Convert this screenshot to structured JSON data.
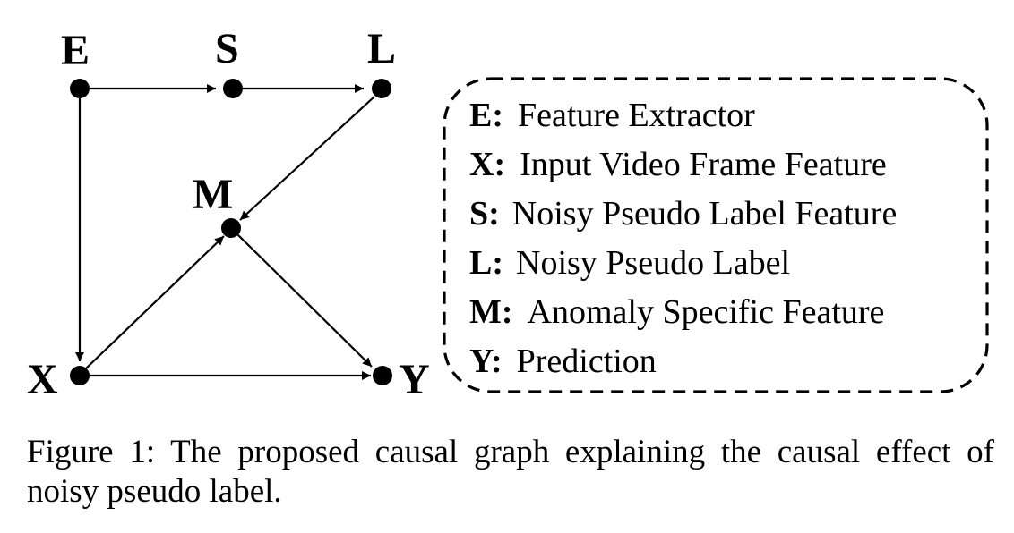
{
  "diagram": {
    "nodes": [
      {
        "id": "E",
        "label": "E"
      },
      {
        "id": "S",
        "label": "S"
      },
      {
        "id": "L",
        "label": "L"
      },
      {
        "id": "M",
        "label": "M"
      },
      {
        "id": "X",
        "label": "X"
      },
      {
        "id": "Y",
        "label": "Y"
      }
    ],
    "edges": [
      {
        "from": "E",
        "to": "S"
      },
      {
        "from": "S",
        "to": "L"
      },
      {
        "from": "E",
        "to": "X"
      },
      {
        "from": "L",
        "to": "M"
      },
      {
        "from": "X",
        "to": "M"
      },
      {
        "from": "M",
        "to": "Y"
      },
      {
        "from": "X",
        "to": "Y"
      }
    ]
  },
  "legend": {
    "items": [
      {
        "key": "E:",
        "text": "Feature Extractor"
      },
      {
        "key": "X:",
        "text": "Input Video Frame Feature"
      },
      {
        "key": "S:",
        "text": "Noisy Pseudo Label Feature"
      },
      {
        "key": "L:",
        "text": "Noisy Pseudo Label"
      },
      {
        "key": "M:",
        "text": "Anomaly Specific Feature"
      },
      {
        "key": "Y:",
        "text": "Prediction"
      }
    ]
  },
  "caption": "Figure 1: The proposed causal graph explaining the causal effect of noisy pseudo label."
}
